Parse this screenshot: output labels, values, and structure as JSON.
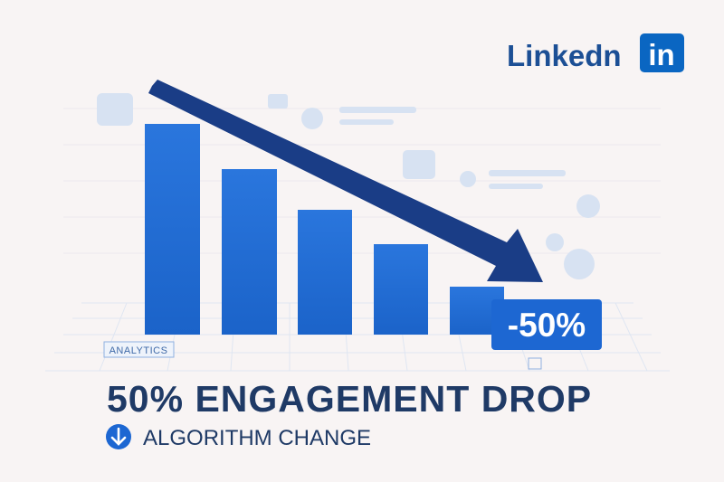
{
  "logo": {
    "word": "Linkedn",
    "badge": "in"
  },
  "illustration": {
    "tag": "ANALYTICS",
    "change_badge": "-50%"
  },
  "headline": "50% ENGAGEMENT DROP",
  "subline": "ALGORITHM CHANGE"
}
